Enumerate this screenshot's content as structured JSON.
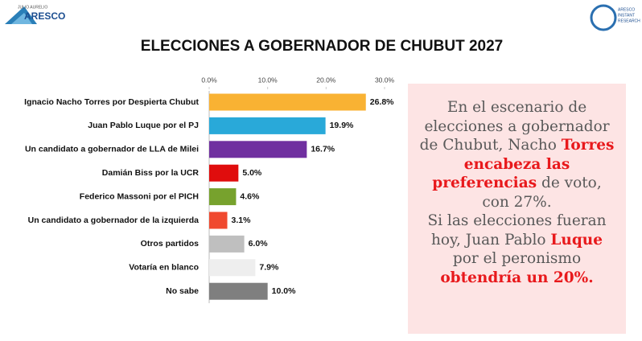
{
  "header": {
    "left_logo_small": "JULIO AURELIO",
    "left_logo": "ARESCO",
    "right_logo": [
      "ARESCO",
      "INSTANT",
      "RESEARCH"
    ]
  },
  "chart_data": {
    "type": "hbar",
    "title": "ELECCIONES A GOBERNADOR DE CHUBUT 2027",
    "categories": [
      "Ignacio Nacho Torres por Despierta Chubut",
      "Juan Pablo Luque por el PJ",
      "Un candidato a gobernador de LLA de Milei",
      "Damián Biss por la UCR",
      "Federico Massoni por el PICH",
      "Un candidato a gobernador de la izquierda",
      "Otros partidos",
      "Votaría en blanco",
      "No sabe"
    ],
    "values": [
      26.8,
      19.9,
      16.7,
      5.0,
      4.6,
      3.1,
      6.0,
      7.9,
      10.0
    ],
    "value_labels": [
      "26.8%",
      "19.9%",
      "16.7%",
      "5.0%",
      "4.6%",
      "3.1%",
      "6.0%",
      "7.9%",
      "10.0%"
    ],
    "colors": [
      "#f9b233",
      "#29a9d9",
      "#7030a0",
      "#e00d0d",
      "#77a22d",
      "#f0492f",
      "#bfbfbf",
      "#eeeeee",
      "#7f7f7f"
    ],
    "xlim": [
      0,
      30
    ],
    "xticks": [
      {
        "value": 0,
        "label": "0.0%"
      },
      {
        "value": 10,
        "label": "10.0%"
      },
      {
        "value": 20,
        "label": "20.0%"
      },
      {
        "value": 30,
        "label": "30.0%"
      }
    ],
    "grid": false
  },
  "textbox": {
    "paragraphs": [
      [
        {
          "text": "En el escenario de elecciones a gobernador de Chubut, Nacho ",
          "highlight": false
        },
        {
          "text": "Torres encabeza las preferencias",
          "highlight": true
        },
        {
          "text": " de voto, con 27%.",
          "highlight": false
        }
      ],
      [
        {
          "text": "Si las elecciones fueran hoy, Juan Pablo ",
          "highlight": false
        },
        {
          "text": "Luque",
          "highlight": true
        },
        {
          "text": " por el peronismo ",
          "highlight": false
        },
        {
          "text": "obtendría un 20%.",
          "highlight": true
        }
      ]
    ]
  }
}
